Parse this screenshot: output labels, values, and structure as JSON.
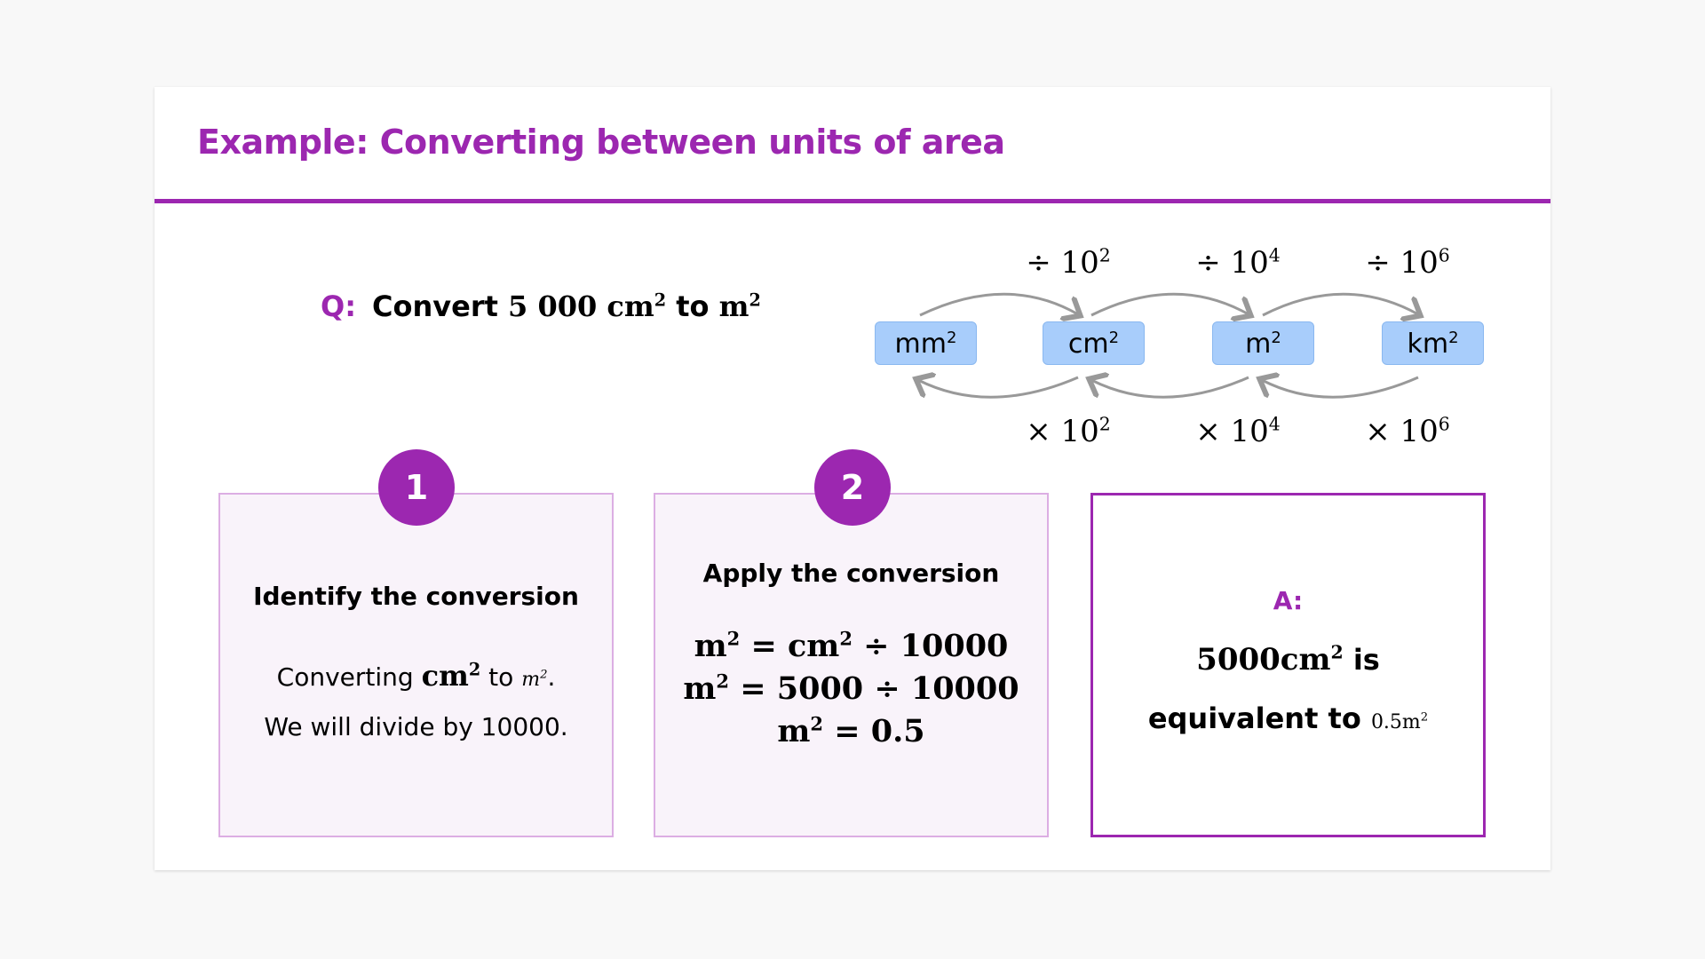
{
  "title": "Example: Converting between units of area",
  "question": {
    "label": "Q:",
    "prefix": "Convert",
    "value": "5 000 cm",
    "exp": "2",
    "mid": "to",
    "target": "m",
    "target_exp": "2"
  },
  "diagram": {
    "units": [
      {
        "base": "mm",
        "exp": "2"
      },
      {
        "base": "cm",
        "exp": "2"
      },
      {
        "base": "m",
        "exp": "2"
      },
      {
        "base": "km",
        "exp": "2"
      }
    ],
    "divide_labels": [
      {
        "op": "÷ 10",
        "exp": "2"
      },
      {
        "op": "÷ 10",
        "exp": "4"
      },
      {
        "op": "÷ 10",
        "exp": "6"
      }
    ],
    "multiply_labels": [
      {
        "op": "× 10",
        "exp": "2"
      },
      {
        "op": "× 10",
        "exp": "4"
      },
      {
        "op": "× 10",
        "exp": "6"
      }
    ],
    "arrow_color": "#999999",
    "box_color": "#a8cdfb"
  },
  "steps": [
    {
      "number": "1",
      "heading": "Identify the conversion",
      "line1_pre": "Converting",
      "line1_from": "cm",
      "line1_from_exp": "2",
      "line1_mid": "to",
      "line1_to": "m",
      "line1_to_exp": "2",
      "line1_end": ".",
      "line2": "We will divide by 10000."
    },
    {
      "number": "2",
      "heading": "Apply the conversion",
      "equations": [
        {
          "lhs": "m",
          "lhs_exp": "2",
          "rhs_a": " = cm",
          "rhs_a_exp": "2",
          "rhs_b": " ÷ 10000"
        },
        {
          "lhs": "m",
          "lhs_exp": "2",
          "rhs": " = 5000 ÷ 10000"
        },
        {
          "lhs": "m",
          "lhs_exp": "2",
          "rhs": " = 0.5"
        }
      ]
    }
  ],
  "answer": {
    "label": "A:",
    "value": "5000cm",
    "value_exp": "2",
    "is": "is",
    "equiv": "equivalent to",
    "result": "0.5m",
    "result_exp": "2"
  },
  "colors": {
    "accent": "#9c27b0"
  }
}
